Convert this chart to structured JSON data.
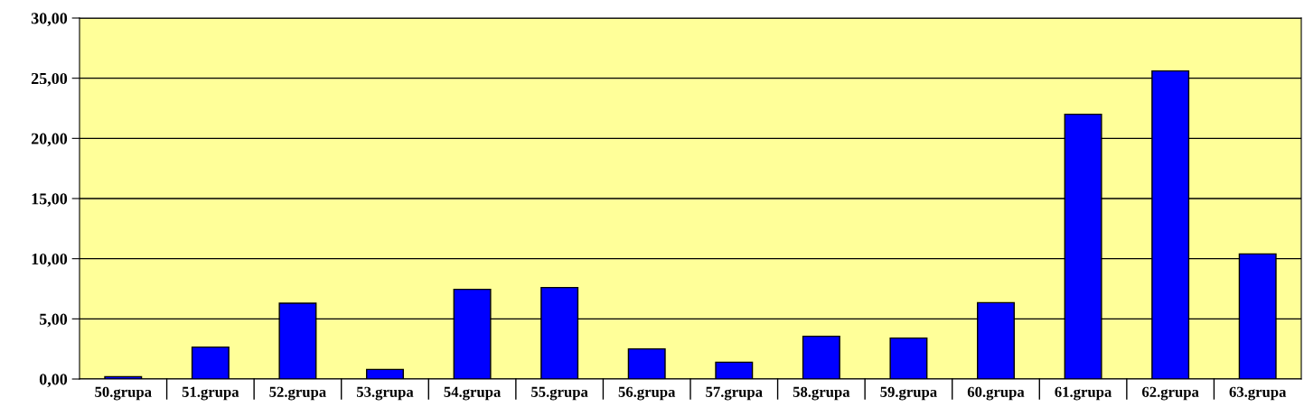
{
  "chart_data": {
    "type": "bar",
    "categories": [
      "50.grupa",
      "51.grupa",
      "52.grupa",
      "53.grupa",
      "54.grupa",
      "55.grupa",
      "56.grupa",
      "57.grupa",
      "58.grupa",
      "59.grupa",
      "60.grupa",
      "61.grupa",
      "62.grupa",
      "63.grupa"
    ],
    "values": [
      0.2,
      2.65,
      6.3,
      0.8,
      7.45,
      7.6,
      2.5,
      1.4,
      3.55,
      3.4,
      6.35,
      22.0,
      25.6,
      10.4
    ],
    "color": "#0000ff",
    "ylim": [
      0,
      30
    ],
    "yticks": [
      {
        "value": 0,
        "label": "0,00"
      },
      {
        "value": 5,
        "label": "5,00"
      },
      {
        "value": 10,
        "label": "10,00"
      },
      {
        "value": 15,
        "label": "15,00"
      },
      {
        "value": 20,
        "label": "20,00"
      },
      {
        "value": 25,
        "label": "25,00"
      },
      {
        "value": 30,
        "label": "30,00"
      }
    ],
    "grid": "y"
  }
}
